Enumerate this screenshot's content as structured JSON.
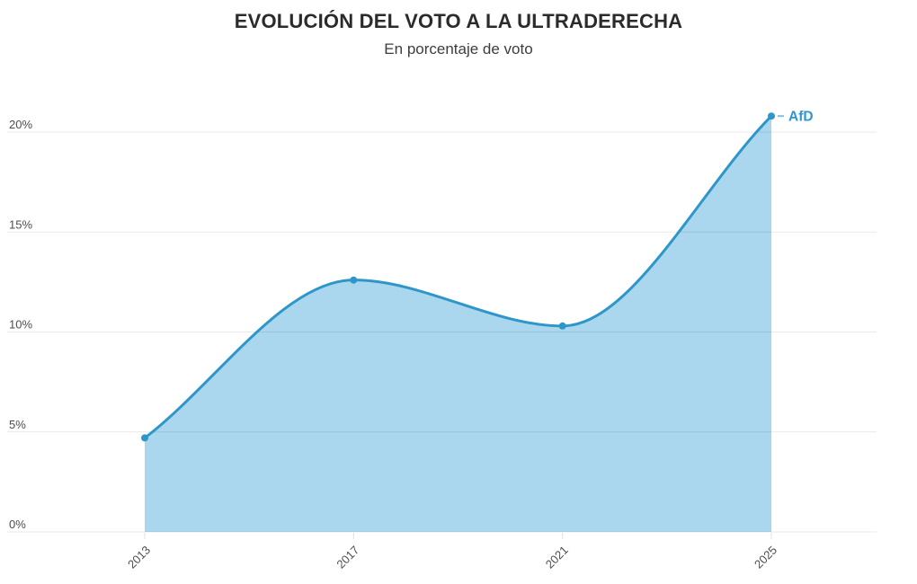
{
  "chart_data": {
    "type": "area",
    "title": "EVOLUCIÓN DEL VOTO A LA ULTRADERECHA",
    "subtitle": "En porcentaje de voto",
    "x": [
      "2013",
      "2017",
      "2021",
      "2025"
    ],
    "series": [
      {
        "name": "AfD",
        "values": [
          4.7,
          12.6,
          10.3,
          20.8
        ]
      }
    ],
    "end_label": "AfD",
    "unit": "%",
    "xlabel": "",
    "ylabel": "",
    "y_ticks": {
      "labels": [
        "0%",
        "5%",
        "10%",
        "15%",
        "20%"
      ],
      "values": [
        0,
        5,
        10,
        15,
        20
      ]
    },
    "ylim": [
      0,
      21
    ],
    "grid": "horizontal",
    "legend_position": "end-of-line",
    "colors": {
      "line": "#2e96c9",
      "fill": "#aad7ee",
      "end_label": "#2d96cc",
      "grid": "#e9e9e9",
      "axis_text": "#4d4d4d",
      "title": "#2b2b2b",
      "subtitle": "#3d3d3d"
    }
  }
}
